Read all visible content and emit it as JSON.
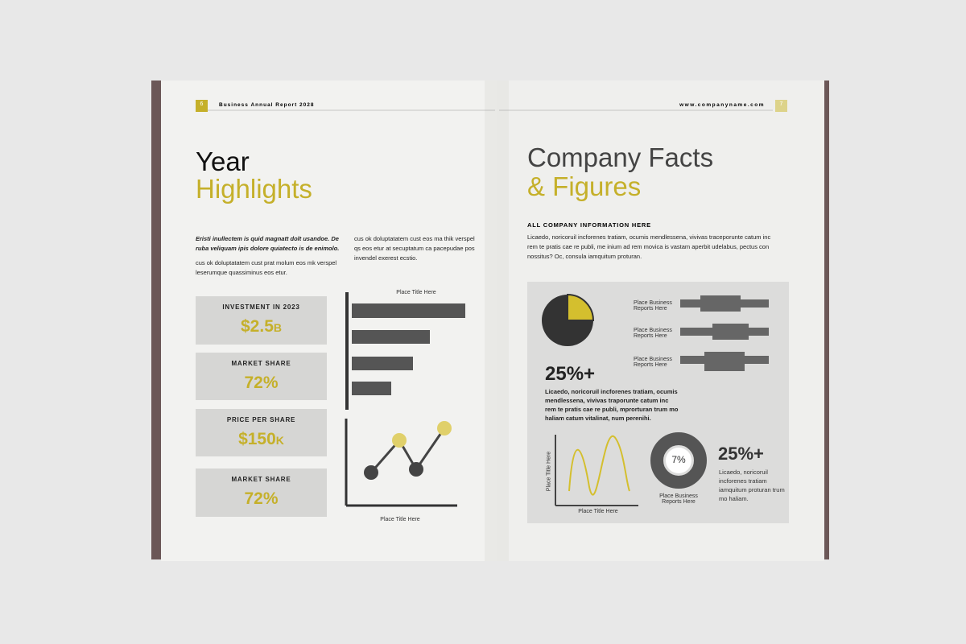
{
  "left_page": {
    "page_number": "6",
    "header": "Business Annual Report 2028",
    "title_line1": "Year",
    "title_line2": "Highlights",
    "intro_bold": "Eristi inullectem is quid magnatt dolt usandoe. De ruba veliquam ipis dolore quiatecto is de enimolo.",
    "intro_text": "cus ok  doluptatatem cust prat molum eos mk  verspel leserumque quassiminus eos etur.",
    "column_text": "cus ok  doluptatatem cust eos ma thik  verspel qs eos etur at secuptatum ca pacepudae pos invendel exerest ecstio.",
    "stats": [
      {
        "label": "INVESTMENT IN 2023",
        "value": "$2.5",
        "unit": "B"
      },
      {
        "label": "MARKET SHARE",
        "value": "72%"
      },
      {
        "label": "PRICE PER SHARE",
        "value": "$150",
        "unit": "K"
      },
      {
        "label": "MARKET SHARE",
        "value": "72%"
      }
    ],
    "bar_chart_title": "Place Title Here",
    "line_chart_title": "Place Title Here"
  },
  "right_page": {
    "page_number": "7",
    "header": "www.companyname.com",
    "title_line1": "Company Facts",
    "title_line2": "& Figures",
    "subheading": "ALL COMPANY INFORMATION HERE",
    "intro": "Licaedo, noricoruil incforenes tratiam, ocumis mendlessena, vivivas traceporunte catum inc rem te pratis cae re publi, me inium ad rem movica is vastam aperbit udelabus, pectus con nossitus? Oc, consula iamquitum proturan.",
    "chart_labels": [
      "Place Business Reports Here",
      "Place Business Reports Here",
      "Place Business Reports Here"
    ],
    "stat1": "25%+",
    "stat1_text": "Licaedo, noricoruil incforenes tratiam, ocumis mendlessena, vivivas traporunte catum inc rem te pratis cae re publi, mprorturan trum mo haliam catum vitalinat, num perenihi.",
    "line_chart_y_title": "Place Title Here",
    "line_chart_x_title": "Place Title Here",
    "donut_value": "7%",
    "donut_label": "Place Business Reports Here",
    "stat2": "25%+",
    "stat2_text": "Licaedo, noricoruil incforenes tratiam iamquitum proturan trum mo haliam."
  }
}
